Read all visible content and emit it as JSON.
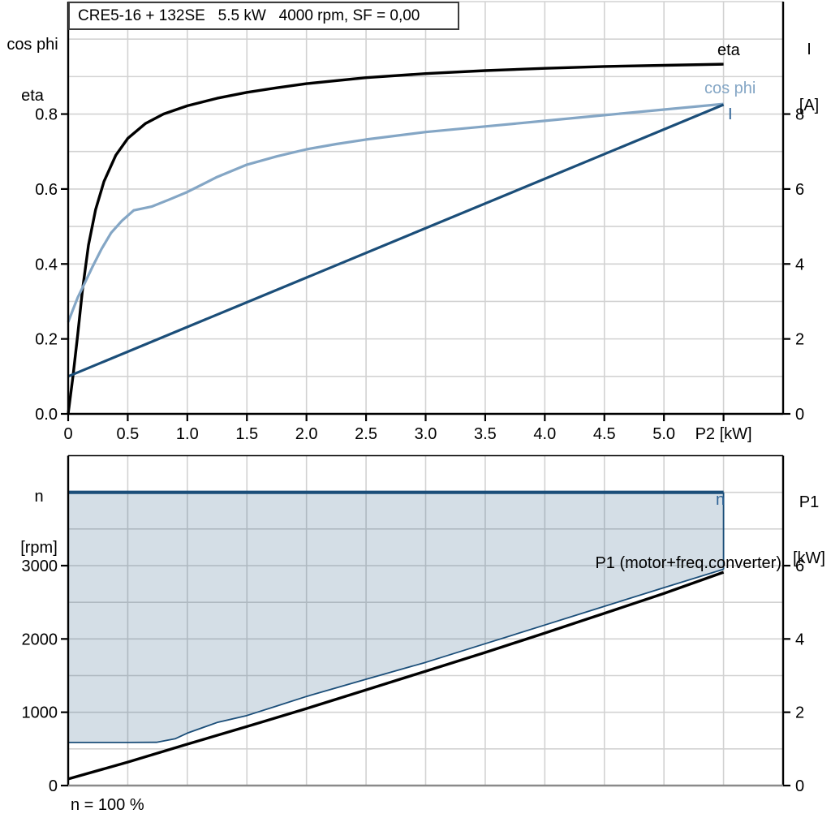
{
  "title": "CRE5-16 + 132SE   5.5 kW   4000 rpm, SF = 0,00",
  "colors": {
    "black": "#000000",
    "dark_blue": "#1b4e79",
    "light_blue": "#84a6c5",
    "label_blue": "#2e6396",
    "area_fill": "rgba(27,78,121,0.19)",
    "grid": "#d2d2d2",
    "gray_axis": "#8a8a8a",
    "title_border": "#3c3c3c"
  },
  "top_chart": {
    "y_left_title_line1": "cos phi",
    "y_left_title_line2": "eta",
    "y_right_title_line1": "I",
    "y_right_title_line2": "[A]",
    "curve_labels": {
      "eta": "eta",
      "cos_phi": "cos phi",
      "current": "I"
    }
  },
  "bottom_chart": {
    "y_left_title_line1": "n",
    "y_left_title_line2": "[rpm]",
    "y_right_title_line1": "P1",
    "y_right_title_line2": "[kW]",
    "curve_labels": {
      "n": "n",
      "p1": "P1 (motor+freq.converter)"
    },
    "footnote": "n = 100 %"
  },
  "chart_data": [
    {
      "type": "line",
      "title": "CRE5-16 + 132SE  5.5 kW  4000 rpm, SF = 0,00",
      "xlabel": "P2 [kW]",
      "x_range": [
        0,
        6
      ],
      "x_grid_step": 0.5,
      "x_ticks": [
        {
          "v": 0,
          "label": "0"
        },
        {
          "v": 0.5,
          "label": "0.5"
        },
        {
          "v": 1,
          "label": "1.0"
        },
        {
          "v": 1.5,
          "label": "1.5"
        },
        {
          "v": 2,
          "label": "2.0"
        },
        {
          "v": 2.5,
          "label": "2.5"
        },
        {
          "v": 3,
          "label": "3.0"
        },
        {
          "v": 3.5,
          "label": "3.5"
        },
        {
          "v": 4,
          "label": "4.0"
        },
        {
          "v": 4.5,
          "label": "4.5"
        },
        {
          "v": 5,
          "label": "5.0"
        },
        {
          "v": 5.5,
          "label": "P2 [kW]"
        }
      ],
      "y_left": {
        "label": "cos phi / eta",
        "range": [
          0,
          1.1
        ],
        "grid_step": 0.1,
        "ticks": [
          {
            "v": 0,
            "label": "0.0"
          },
          {
            "v": 0.2,
            "label": "0.2"
          },
          {
            "v": 0.4,
            "label": "0.4"
          },
          {
            "v": 0.6,
            "label": "0.6"
          },
          {
            "v": 0.8,
            "label": "0.8"
          }
        ]
      },
      "y_right": {
        "label": "I [A]",
        "range": [
          0,
          11
        ],
        "ticks": [
          {
            "v": 0,
            "label": "0"
          },
          {
            "v": 2,
            "label": "2"
          },
          {
            "v": 4,
            "label": "4"
          },
          {
            "v": 6,
            "label": "6"
          },
          {
            "v": 8,
            "label": "8"
          }
        ]
      },
      "series": [
        {
          "name": "eta",
          "axis": "left",
          "color": "black",
          "width": 3.4,
          "points": [
            [
              0,
              0
            ],
            [
              0.04,
              0.1
            ],
            [
              0.08,
              0.21
            ],
            [
              0.12,
              0.33
            ],
            [
              0.17,
              0.45
            ],
            [
              0.23,
              0.545
            ],
            [
              0.3,
              0.62
            ],
            [
              0.4,
              0.69
            ],
            [
              0.5,
              0.735
            ],
            [
              0.65,
              0.775
            ],
            [
              0.8,
              0.8
            ],
            [
              1.0,
              0.822
            ],
            [
              1.25,
              0.842
            ],
            [
              1.5,
              0.858
            ],
            [
              1.75,
              0.87
            ],
            [
              2.0,
              0.881
            ],
            [
              2.5,
              0.897
            ],
            [
              3.0,
              0.908
            ],
            [
              3.5,
              0.916
            ],
            [
              4.0,
              0.922
            ],
            [
              4.5,
              0.927
            ],
            [
              5.0,
              0.93
            ],
            [
              5.5,
              0.933
            ]
          ]
        },
        {
          "name": "cos phi",
          "axis": "left",
          "color": "light_blue",
          "width": 3.2,
          "points": [
            [
              0,
              0.245
            ],
            [
              0.04,
              0.278
            ],
            [
              0.08,
              0.31
            ],
            [
              0.14,
              0.35
            ],
            [
              0.2,
              0.39
            ],
            [
              0.28,
              0.44
            ],
            [
              0.36,
              0.483
            ],
            [
              0.45,
              0.515
            ],
            [
              0.55,
              0.543
            ],
            [
              0.7,
              0.553
            ],
            [
              0.85,
              0.572
            ],
            [
              1.0,
              0.592
            ],
            [
              1.25,
              0.632
            ],
            [
              1.5,
              0.665
            ],
            [
              1.75,
              0.687
            ],
            [
              2.0,
              0.706
            ],
            [
              2.25,
              0.72
            ],
            [
              2.5,
              0.732
            ],
            [
              3.0,
              0.752
            ],
            [
              3.5,
              0.767
            ],
            [
              4.0,
              0.782
            ],
            [
              4.5,
              0.797
            ],
            [
              5.0,
              0.812
            ],
            [
              5.5,
              0.827
            ]
          ]
        },
        {
          "name": "I",
          "axis": "right",
          "color": "dark_blue",
          "width": 3.2,
          "points": [
            [
              0,
              1.0
            ],
            [
              5.5,
              8.25
            ]
          ]
        }
      ]
    },
    {
      "type": "line",
      "xlabel": "",
      "x_range": [
        0,
        6
      ],
      "x_grid_step": 0.5,
      "x_ticks": [],
      "y_left": {
        "label": "n [rpm]",
        "range": [
          0,
          4500
        ],
        "grid_step": 500,
        "ticks": [
          {
            "v": 0,
            "label": "0"
          },
          {
            "v": 1000,
            "label": "1000"
          },
          {
            "v": 2000,
            "label": "2000"
          },
          {
            "v": 3000,
            "label": "3000"
          }
        ]
      },
      "y_right": {
        "label": "P1 [kW]",
        "range": [
          0,
          9
        ],
        "ticks": [
          {
            "v": 0,
            "label": "0"
          },
          {
            "v": 2,
            "label": "2"
          },
          {
            "v": 4,
            "label": "4"
          },
          {
            "v": 6,
            "label": "6"
          }
        ]
      },
      "area": {
        "top_value": 4000,
        "color_key": "area_fill",
        "boundary": "n_min"
      },
      "series": [
        {
          "name": "n_min",
          "axis": "left",
          "color": "dark_blue",
          "width": 1.8,
          "points": [
            [
              0,
              588
            ],
            [
              0.5,
              588
            ],
            [
              0.74,
              590
            ],
            [
              0.9,
              640
            ],
            [
              1.0,
              715
            ],
            [
              1.25,
              860
            ],
            [
              1.5,
              955
            ],
            [
              1.75,
              1085
            ],
            [
              2.0,
              1215
            ],
            [
              2.5,
              1450
            ],
            [
              3.0,
              1680
            ],
            [
              3.5,
              1935
            ],
            [
              4.0,
              2190
            ],
            [
              4.5,
              2445
            ],
            [
              5.0,
              2700
            ],
            [
              5.5,
              2950
            ]
          ]
        },
        {
          "name": "fill_right_edge",
          "axis": "left",
          "color": "dark_blue",
          "width": 1.8,
          "points": [
            [
              5.5,
              4000
            ],
            [
              5.5,
              2950
            ]
          ]
        },
        {
          "name": "P1 (motor+freq.converter)",
          "axis": "right",
          "color": "black",
          "width": 3.4,
          "points": [
            [
              0,
              0.18
            ],
            [
              0.5,
              0.64
            ],
            [
              1.0,
              1.13
            ],
            [
              1.5,
              1.61
            ],
            [
              2.0,
              2.1
            ],
            [
              2.5,
              2.61
            ],
            [
              3.0,
              3.12
            ],
            [
              3.5,
              3.63
            ],
            [
              4.0,
              4.16
            ],
            [
              4.5,
              4.7
            ],
            [
              5.0,
              5.24
            ],
            [
              5.5,
              5.82
            ]
          ]
        },
        {
          "name": "n",
          "axis": "left",
          "color": "dark_blue",
          "width": 4.2,
          "points": [
            [
              0,
              4000
            ],
            [
              5.5,
              4000
            ]
          ]
        }
      ]
    }
  ]
}
